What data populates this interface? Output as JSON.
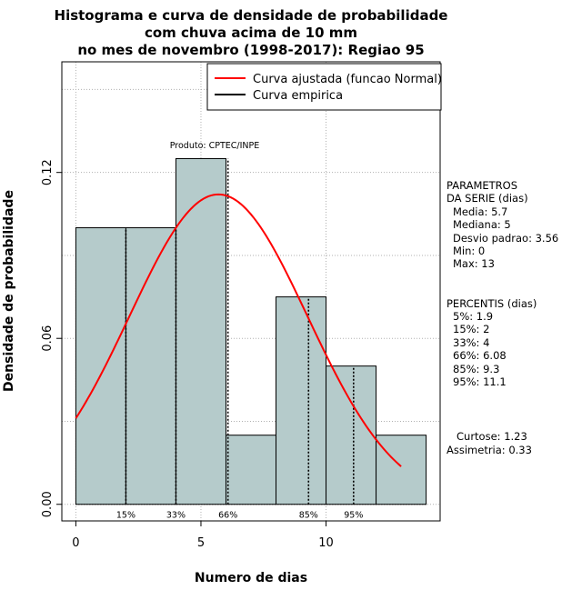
{
  "chart_data": {
    "type": "bar",
    "title_lines": [
      "Histograma e curva de densidade de probabilidade",
      "com chuva acima de 10 mm",
      "no mes de novembro (1998-2017): Regiao 95"
    ],
    "xlabel": "Numero de dias",
    "ylabel": "Densidade de probabilidade",
    "xlim": [
      -0.56,
      14.56
    ],
    "ylim": [
      -0.006,
      0.16
    ],
    "xticks": [
      0,
      5,
      10
    ],
    "yticks": [
      0.0,
      0.06,
      0.12
    ],
    "ytick_labels": [
      "0.00",
      "0.06",
      "0.12"
    ],
    "grid": true,
    "bar_color": "#b5cbcb",
    "bins": [
      {
        "x0": 0,
        "x1": 2,
        "density": 0.1
      },
      {
        "x0": 2,
        "x1": 4,
        "density": 0.1
      },
      {
        "x0": 4,
        "x1": 6,
        "density": 0.125
      },
      {
        "x0": 6,
        "x1": 8,
        "density": 0.025
      },
      {
        "x0": 8,
        "x1": 10,
        "density": 0.075
      },
      {
        "x0": 10,
        "x1": 12,
        "density": 0.05
      },
      {
        "x0": 12,
        "x1": 14,
        "density": 0.025
      }
    ],
    "series": [
      {
        "name": "Curva ajustada (funcao Normal)",
        "color": "#ff0000",
        "kind": "normal",
        "mean": 5.7,
        "sd": 3.56,
        "x_range": [
          0,
          13
        ]
      },
      {
        "name": "Curva empirica",
        "color": "#000000",
        "kind": "empirical"
      }
    ],
    "legend_position": "top-right",
    "percentile_markers": [
      {
        "label": "15%",
        "x": 2,
        "y": 0.1
      },
      {
        "label": "33%",
        "x": 4,
        "y": 0.1
      },
      {
        "label": "66%",
        "x": 6.08,
        "y": 0.125
      },
      {
        "label": "85%",
        "x": 9.3,
        "y": 0.075
      },
      {
        "label": "95%",
        "x": 11.1,
        "y": 0.05
      }
    ],
    "annotation": "Produto: CPTEC/INPE",
    "parametros": {
      "heading": [
        "PARAMETROS",
        "DA SERIE (dias)"
      ],
      "lines": [
        "Media: 5.7",
        "Mediana: 5",
        "Desvio padrao: 3.56",
        "Min: 0",
        "Max: 13"
      ]
    },
    "percentis": {
      "heading": "PERCENTIS (dias)",
      "lines": [
        "5%: 1.9",
        "15%: 2",
        "33%: 4",
        "66%: 6.08",
        "85%: 9.3",
        "95%: 11.1"
      ]
    },
    "extra": [
      "Curtose: 1.23",
      "Assimetria: 0.33"
    ]
  }
}
